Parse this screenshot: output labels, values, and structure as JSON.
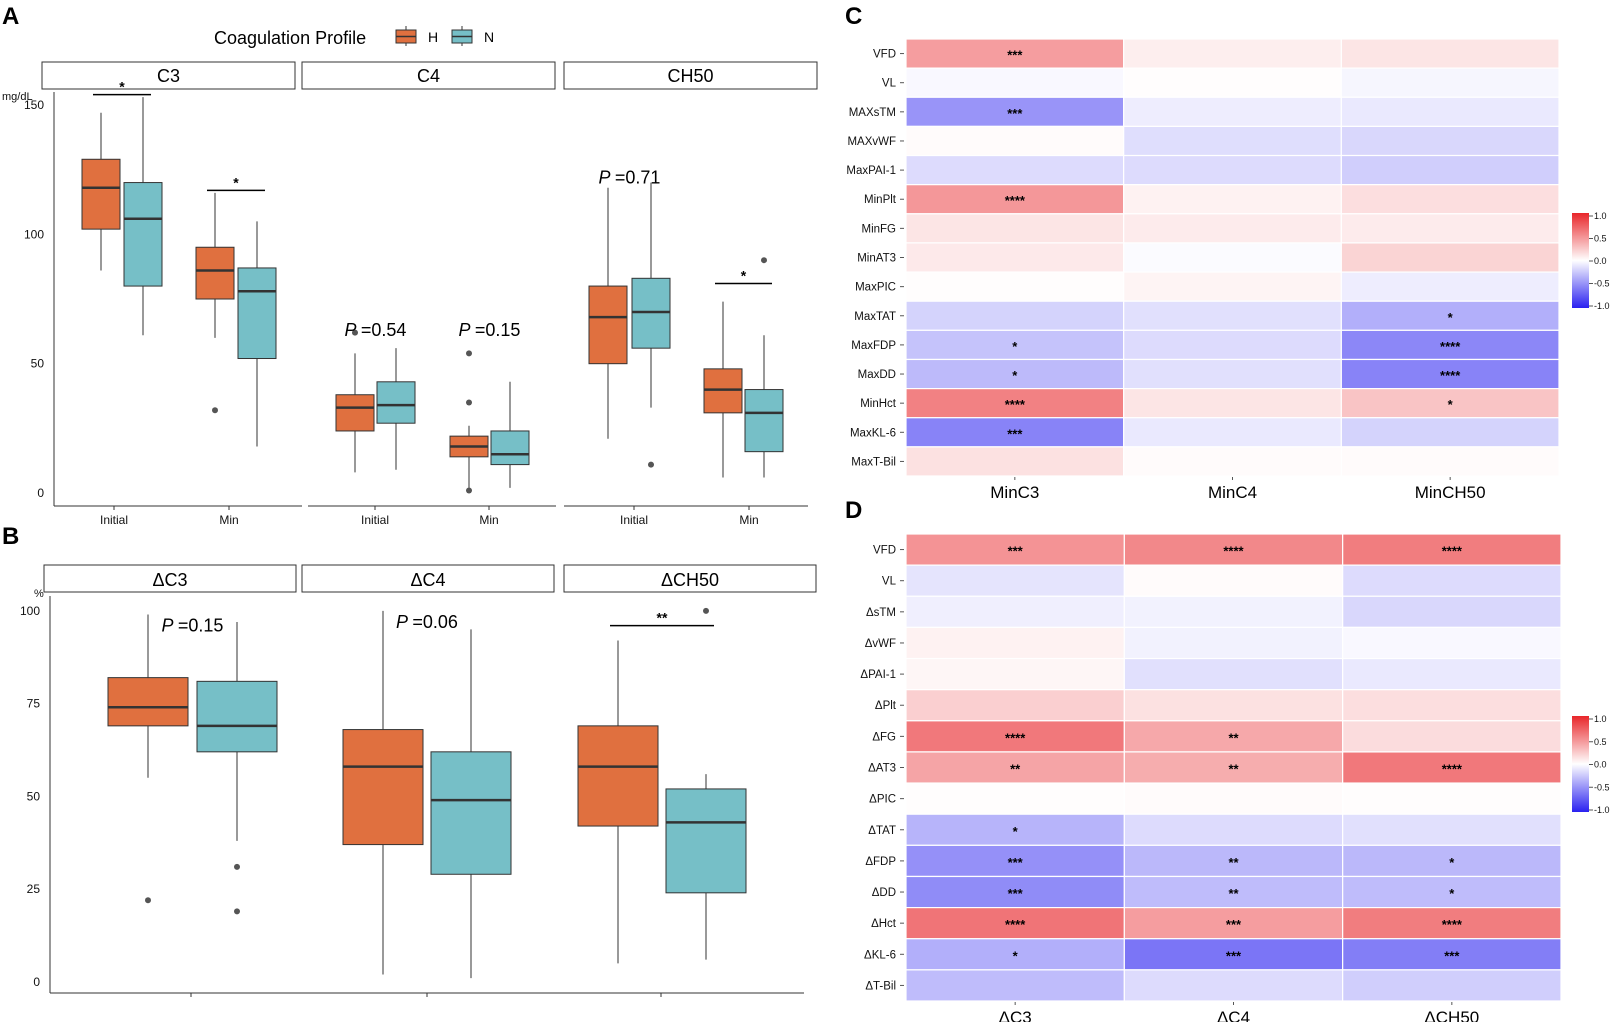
{
  "colors": {
    "H": "#e0703f",
    "N": "#76bfc7",
    "median": "#333333",
    "neg": "#2a21f0",
    "pos": "#e8262a",
    "mid": "#ffffff"
  },
  "panel_labels": [
    "A",
    "B",
    "C",
    "D"
  ],
  "legend": {
    "title": "Coagulation Profile",
    "items": [
      "H",
      "N"
    ]
  },
  "chart_data": [
    {
      "id": "A",
      "type": "boxplot",
      "unit": "mg/dL",
      "ylim": [
        -5,
        155
      ],
      "yticks": [
        0,
        50,
        100,
        150
      ],
      "facets": [
        {
          "title": "C3",
          "groups": [
            {
              "label": "Initial",
              "boxes": [
                {
                  "series": "H",
                  "whisker_low": 86,
                  "q1": 102,
                  "median": 118,
                  "q3": 129,
                  "whisker_high": 147,
                  "outliers": []
                },
                {
                  "series": "N",
                  "whisker_low": 61,
                  "q1": 80,
                  "median": 106,
                  "q3": 120,
                  "whisker_high": 153,
                  "outliers": []
                }
              ]
            },
            {
              "label": "Min",
              "boxes": [
                {
                  "series": "H",
                  "whisker_low": 60,
                  "q1": 75,
                  "median": 86,
                  "q3": 95,
                  "whisker_high": 116,
                  "outliers": [
                    32
                  ]
                },
                {
                  "series": "N",
                  "whisker_low": 18,
                  "q1": 52,
                  "median": 78,
                  "q3": 87,
                  "whisker_high": 105,
                  "outliers": []
                }
              ]
            }
          ],
          "annotations": [
            {
              "text": "*",
              "group": 0,
              "bar_y": 154,
              "kind": "star"
            },
            {
              "text": "*",
              "group": 1,
              "bar_y": 117,
              "kind": "star"
            }
          ]
        },
        {
          "title": "C4",
          "groups": [
            {
              "label": "Initial",
              "boxes": [
                {
                  "series": "H",
                  "whisker_low": 8,
                  "q1": 24,
                  "median": 33,
                  "q3": 38,
                  "whisker_high": 54,
                  "outliers": [
                    62
                  ]
                },
                {
                  "series": "N",
                  "whisker_low": 9,
                  "q1": 27,
                  "median": 34,
                  "q3": 43,
                  "whisker_high": 56,
                  "outliers": []
                }
              ]
            },
            {
              "label": "Min",
              "boxes": [
                {
                  "series": "H",
                  "whisker_low": 2,
                  "q1": 14,
                  "median": 18,
                  "q3": 22,
                  "whisker_high": 26,
                  "outliers": [
                    54,
                    35,
                    1
                  ]
                },
                {
                  "series": "N",
                  "whisker_low": 2,
                  "q1": 11,
                  "median": 15,
                  "q3": 24,
                  "whisker_high": 43,
                  "outliers": []
                }
              ]
            }
          ],
          "annotations": [
            {
              "text": "=0.54",
              "group": 0,
              "y": 63,
              "kind": "p"
            },
            {
              "text": "=0.15",
              "group": 1,
              "y": 63,
              "kind": "p"
            }
          ]
        },
        {
          "title": "CH50",
          "groups": [
            {
              "label": "Initial",
              "boxes": [
                {
                  "series": "H",
                  "whisker_low": 21,
                  "q1": 50,
                  "median": 68,
                  "q3": 80,
                  "whisker_high": 118,
                  "outliers": []
                },
                {
                  "series": "N",
                  "whisker_low": 33,
                  "q1": 56,
                  "median": 70,
                  "q3": 83,
                  "whisker_high": 120,
                  "outliers": [
                    11
                  ]
                }
              ]
            },
            {
              "label": "Min",
              "boxes": [
                {
                  "series": "H",
                  "whisker_low": 6,
                  "q1": 31,
                  "median": 40,
                  "q3": 48,
                  "whisker_high": 74,
                  "outliers": []
                },
                {
                  "series": "N",
                  "whisker_low": 6,
                  "q1": 16,
                  "median": 31,
                  "q3": 40,
                  "whisker_high": 61,
                  "outliers": [
                    90
                  ]
                }
              ]
            }
          ],
          "annotations": [
            {
              "text": "=0.71",
              "group": 0,
              "y": 122,
              "kind": "p"
            },
            {
              "text": "*",
              "group": 1,
              "bar_y": 81,
              "kind": "star"
            }
          ]
        }
      ]
    },
    {
      "id": "B",
      "type": "boxplot",
      "unit": "%",
      "ylim": [
        -3,
        104
      ],
      "yticks": [
        0,
        25,
        50,
        75,
        100
      ],
      "facets": [
        {
          "title": "ΔC3",
          "groups": [
            {
              "label": "",
              "boxes": [
                {
                  "series": "H",
                  "whisker_low": 55,
                  "q1": 69,
                  "median": 74,
                  "q3": 82,
                  "whisker_high": 99,
                  "outliers": [
                    22
                  ]
                },
                {
                  "series": "N",
                  "whisker_low": 38,
                  "q1": 62,
                  "median": 69,
                  "q3": 81,
                  "whisker_high": 97,
                  "outliers": [
                    31,
                    19
                  ]
                }
              ]
            }
          ],
          "annotations": [
            {
              "text": "=0.15",
              "group": 0,
              "y": 96,
              "kind": "p"
            }
          ]
        },
        {
          "title": "ΔC4",
          "groups": [
            {
              "label": "",
              "boxes": [
                {
                  "series": "H",
                  "whisker_low": 2,
                  "q1": 37,
                  "median": 58,
                  "q3": 68,
                  "whisker_high": 100,
                  "outliers": []
                },
                {
                  "series": "N",
                  "whisker_low": 1,
                  "q1": 29,
                  "median": 49,
                  "q3": 62,
                  "whisker_high": 95,
                  "outliers": []
                }
              ]
            }
          ],
          "annotations": [
            {
              "text": "=0.06",
              "group": 0,
              "y": 97,
              "kind": "p"
            }
          ]
        },
        {
          "title": "ΔCH50",
          "groups": [
            {
              "label": "",
              "boxes": [
                {
                  "series": "H",
                  "whisker_low": 5,
                  "q1": 42,
                  "median": 58,
                  "q3": 69,
                  "whisker_high": 92,
                  "outliers": []
                },
                {
                  "series": "N",
                  "whisker_low": 6,
                  "q1": 24,
                  "median": 43,
                  "q3": 52,
                  "whisker_high": 56,
                  "outliers": [
                    100
                  ]
                }
              ]
            }
          ],
          "annotations": [
            {
              "text": "**",
              "group": 0,
              "bar_y": 96,
              "kind": "star"
            }
          ]
        }
      ]
    },
    {
      "id": "C",
      "type": "heatmap",
      "scale": [
        -1.0,
        1.0
      ],
      "colorbar_ticks": [
        "1.0",
        "0.5",
        "0.0",
        "-0.5",
        "-1.0"
      ],
      "columns": [
        "MinC3",
        "MinC4",
        "MinCH50"
      ],
      "rows": [
        "VFD",
        "VL",
        "MAXsTM",
        "MAXvWF",
        "MaxPAI-1",
        "MinPlt",
        "MinFG",
        "MinAT3",
        "MaxPIC",
        "MaxTAT",
        "MaxFDP",
        "MaxDD",
        "MinHct",
        "MaxKL-6",
        "MaxT-Bil"
      ],
      "values": [
        [
          0.45,
          0.08,
          0.12
        ],
        [
          -0.03,
          0.01,
          -0.04
        ],
        [
          -0.48,
          -0.08,
          -0.1
        ],
        [
          0.02,
          -0.15,
          -0.18
        ],
        [
          -0.16,
          -0.16,
          -0.22
        ],
        [
          0.48,
          0.06,
          0.15
        ],
        [
          0.12,
          0.09,
          0.09
        ],
        [
          0.1,
          -0.02,
          0.2
        ],
        [
          0.01,
          0.05,
          -0.08
        ],
        [
          -0.2,
          -0.14,
          -0.36
        ],
        [
          -0.27,
          -0.16,
          -0.54
        ],
        [
          -0.31,
          -0.14,
          -0.56
        ],
        [
          0.58,
          0.12,
          0.27
        ],
        [
          -0.56,
          -0.1,
          -0.2
        ],
        [
          0.14,
          0.02,
          0.02
        ]
      ],
      "stars": [
        [
          "***",
          "",
          ""
        ],
        [
          "",
          "",
          ""
        ],
        [
          "***",
          "",
          ""
        ],
        [
          "",
          "",
          ""
        ],
        [
          "",
          "",
          ""
        ],
        [
          "****",
          "",
          ""
        ],
        [
          "",
          "",
          ""
        ],
        [
          "",
          "",
          ""
        ],
        [
          "",
          "",
          ""
        ],
        [
          "",
          "",
          "*"
        ],
        [
          "*",
          "",
          "****"
        ],
        [
          "*",
          "",
          "****"
        ],
        [
          "****",
          "",
          "*"
        ],
        [
          "***",
          "",
          ""
        ],
        [
          "",
          "",
          ""
        ]
      ]
    },
    {
      "id": "D",
      "type": "heatmap",
      "scale": [
        -1.0,
        1.0
      ],
      "colorbar_ticks": [
        "1.0",
        "0.5",
        "0.0",
        "-0.5",
        "-1.0"
      ],
      "columns": [
        "ΔC3",
        "ΔC4",
        "ΔCH50"
      ],
      "rows": [
        "VFD",
        "VL",
        "ΔsTM",
        "ΔvWF",
        "ΔPAI-1",
        "ΔPlt",
        "ΔFG",
        "ΔAT3",
        "ΔPIC",
        "ΔTAT",
        "ΔFDP",
        "ΔDD",
        "ΔHct",
        "ΔKL-6",
        "ΔT-Bil"
      ],
      "values": [
        [
          0.5,
          0.55,
          0.6
        ],
        [
          -0.12,
          0.02,
          -0.16
        ],
        [
          -0.07,
          -0.06,
          -0.18
        ],
        [
          0.06,
          -0.06,
          -0.03
        ],
        [
          0.04,
          -0.14,
          -0.1
        ],
        [
          0.22,
          0.14,
          0.15
        ],
        [
          0.62,
          0.4,
          0.16
        ],
        [
          0.42,
          0.38,
          0.62
        ],
        [
          0.01,
          0.02,
          0.01
        ],
        [
          -0.34,
          -0.16,
          -0.14
        ],
        [
          -0.5,
          -0.32,
          -0.32
        ],
        [
          -0.52,
          -0.3,
          -0.3
        ],
        [
          0.64,
          0.45,
          0.6
        ],
        [
          -0.36,
          -0.62,
          -0.58
        ],
        [
          -0.3,
          -0.16,
          -0.22
        ]
      ],
      "stars": [
        [
          "***",
          "****",
          "****"
        ],
        [
          "",
          "",
          ""
        ],
        [
          "",
          "",
          ""
        ],
        [
          "",
          "",
          ""
        ],
        [
          "",
          "",
          ""
        ],
        [
          "",
          "",
          ""
        ],
        [
          "****",
          "**",
          ""
        ],
        [
          "**",
          "**",
          "****"
        ],
        [
          "",
          "",
          ""
        ],
        [
          "*",
          "",
          ""
        ],
        [
          "***",
          "**",
          "*"
        ],
        [
          "***",
          "**",
          "*"
        ],
        [
          "****",
          "***",
          "****"
        ],
        [
          "*",
          "***",
          "***"
        ],
        [
          "",
          "",
          ""
        ]
      ]
    }
  ]
}
